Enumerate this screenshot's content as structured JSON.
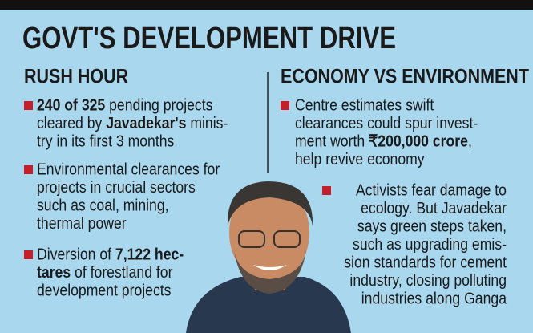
{
  "title": "GOVT'S DEVELOPMENT DRIVE",
  "columns": [
    {
      "heading": "RUSH HOUR",
      "bullets": [
        [
          [
            {
              "text": "240 of 325",
              "bold": true
            },
            " pending projects"
          ],
          [
            "cleared by ",
            {
              "text": "Javadekar's",
              "bold": true
            },
            " minis-"
          ],
          [
            "try in its first 3 months"
          ]
        ],
        [
          [
            "Environmental clearances for"
          ],
          [
            "projects in crucial sectors"
          ],
          [
            "such as coal, mining,"
          ],
          [
            "thermal power"
          ]
        ],
        [
          [
            "Diversion of ",
            {
              "text": "7,122 hec-",
              "bold": true
            }
          ],
          [
            {
              "text": "tares",
              "bold": true
            },
            " of forestland for"
          ],
          [
            "development projects"
          ]
        ]
      ]
    },
    {
      "heading": "ECONOMY VS ENVIRONMENT",
      "bullets": [
        [
          [
            "Centre estimates swift"
          ],
          [
            "clearances could spur invest-"
          ],
          [
            "ment worth ",
            {
              "text": "₹200,000 crore",
              "bold": true
            },
            ","
          ],
          [
            "help revive economy"
          ]
        ],
        [
          [
            "Activists fear damage to"
          ],
          [
            "ecology. But Javadekar"
          ],
          [
            "says green steps taken,"
          ],
          [
            "such as upgrading emis-"
          ],
          [
            "sion standards for cement"
          ],
          [
            "industry, closing polluting"
          ],
          [
            "industries along Ganga"
          ]
        ]
      ]
    }
  ]
}
